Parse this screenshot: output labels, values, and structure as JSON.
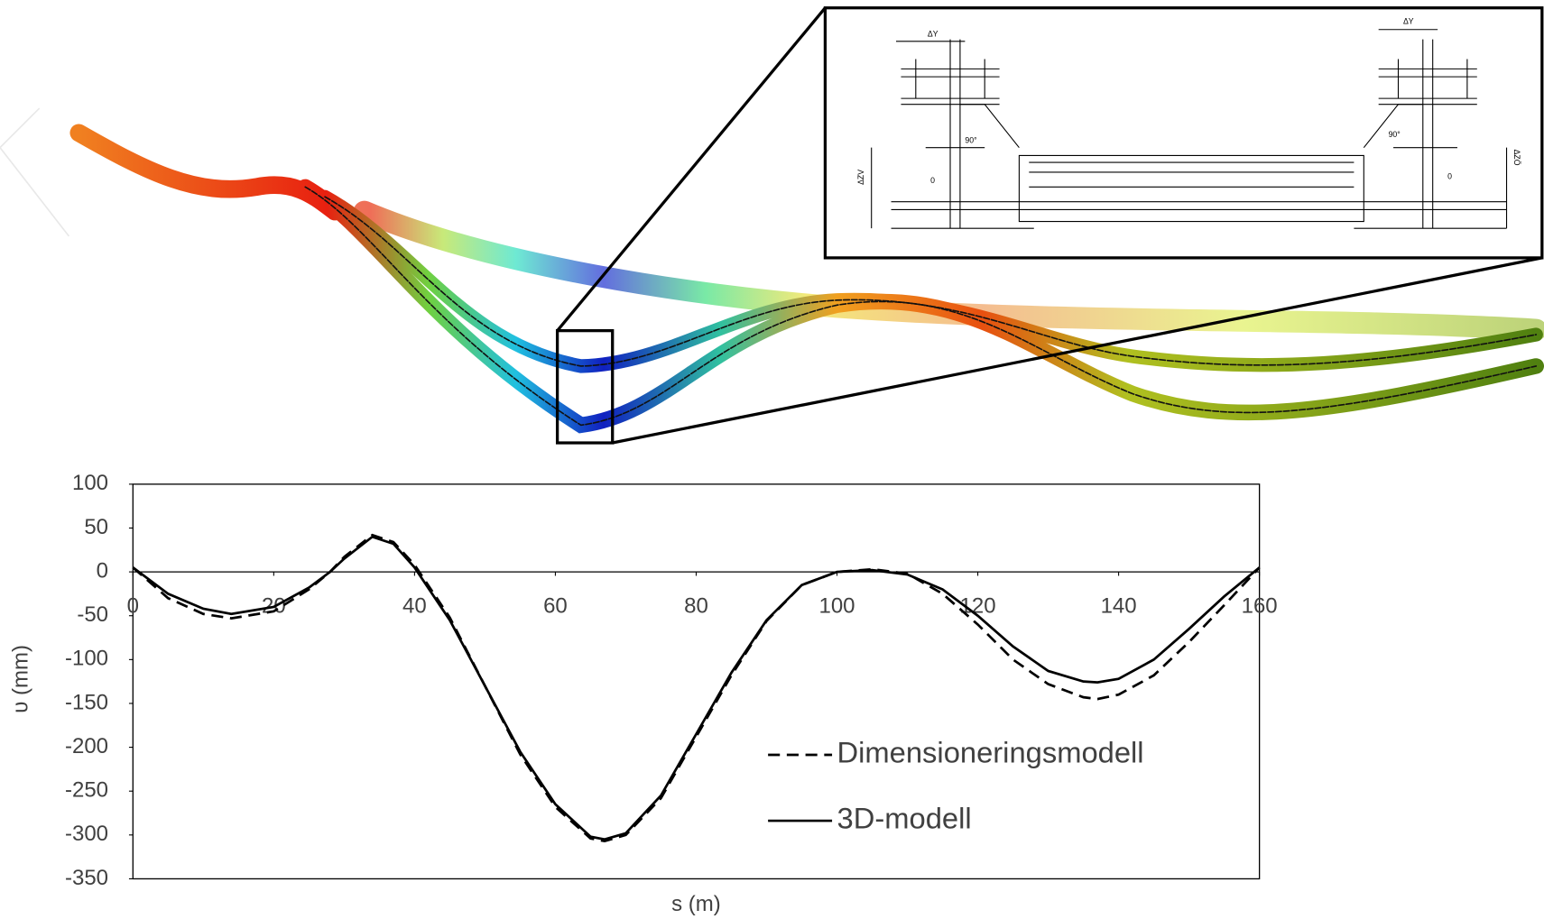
{
  "chart_data": {
    "type": "line",
    "x_label": "s (m)",
    "y_label": "υ (mm)",
    "x": [
      0,
      5,
      10,
      14,
      20,
      25,
      28,
      30,
      34,
      37,
      40,
      45,
      50,
      55,
      60,
      65,
      67,
      70,
      75,
      80,
      85,
      90,
      95,
      100,
      105,
      110,
      115,
      120,
      125,
      130,
      135,
      137,
      140,
      145,
      150,
      155,
      160
    ],
    "series": [
      {
        "name": "Dimensioneringsmodell",
        "color": "#000000",
        "linestyle": "dashed",
        "values": [
          5,
          -30,
          -48,
          -53,
          -45,
          -20,
          0,
          17,
          42,
          34,
          8,
          -52,
          -130,
          -208,
          -268,
          -304,
          -307,
          -300,
          -258,
          -188,
          -118,
          -56,
          -15,
          0,
          3,
          -2,
          -25,
          -60,
          -100,
          -128,
          -143,
          -145,
          -140,
          -118,
          -80,
          -38,
          5
        ]
      },
      {
        "name": "3D-modell",
        "color": "#000000",
        "linestyle": "solid",
        "values": [
          5,
          -25,
          -42,
          -48,
          -40,
          -18,
          0,
          15,
          40,
          32,
          5,
          -55,
          -130,
          -205,
          -265,
          -302,
          -305,
          -298,
          -255,
          -185,
          -115,
          -55,
          -15,
          0,
          2,
          -3,
          -20,
          -50,
          -85,
          -113,
          -125,
          -126,
          -122,
          -100,
          -65,
          -28,
          5
        ]
      }
    ],
    "xlim": [
      0,
      160
    ],
    "xticks": [
      0,
      20,
      40,
      60,
      80,
      100,
      120,
      140,
      160
    ],
    "ylim": [
      -350,
      100
    ],
    "yticks": [
      100,
      50,
      0,
      -50,
      -100,
      -150,
      -200,
      -250,
      -300,
      -350
    ],
    "legend": "lower right",
    "grid": false
  },
  "inset": {
    "labels": [
      "ΔY",
      "ΔY",
      "90°",
      "90°",
      "0",
      "0",
      "ΔZV",
      "ΔZÖ"
    ]
  }
}
